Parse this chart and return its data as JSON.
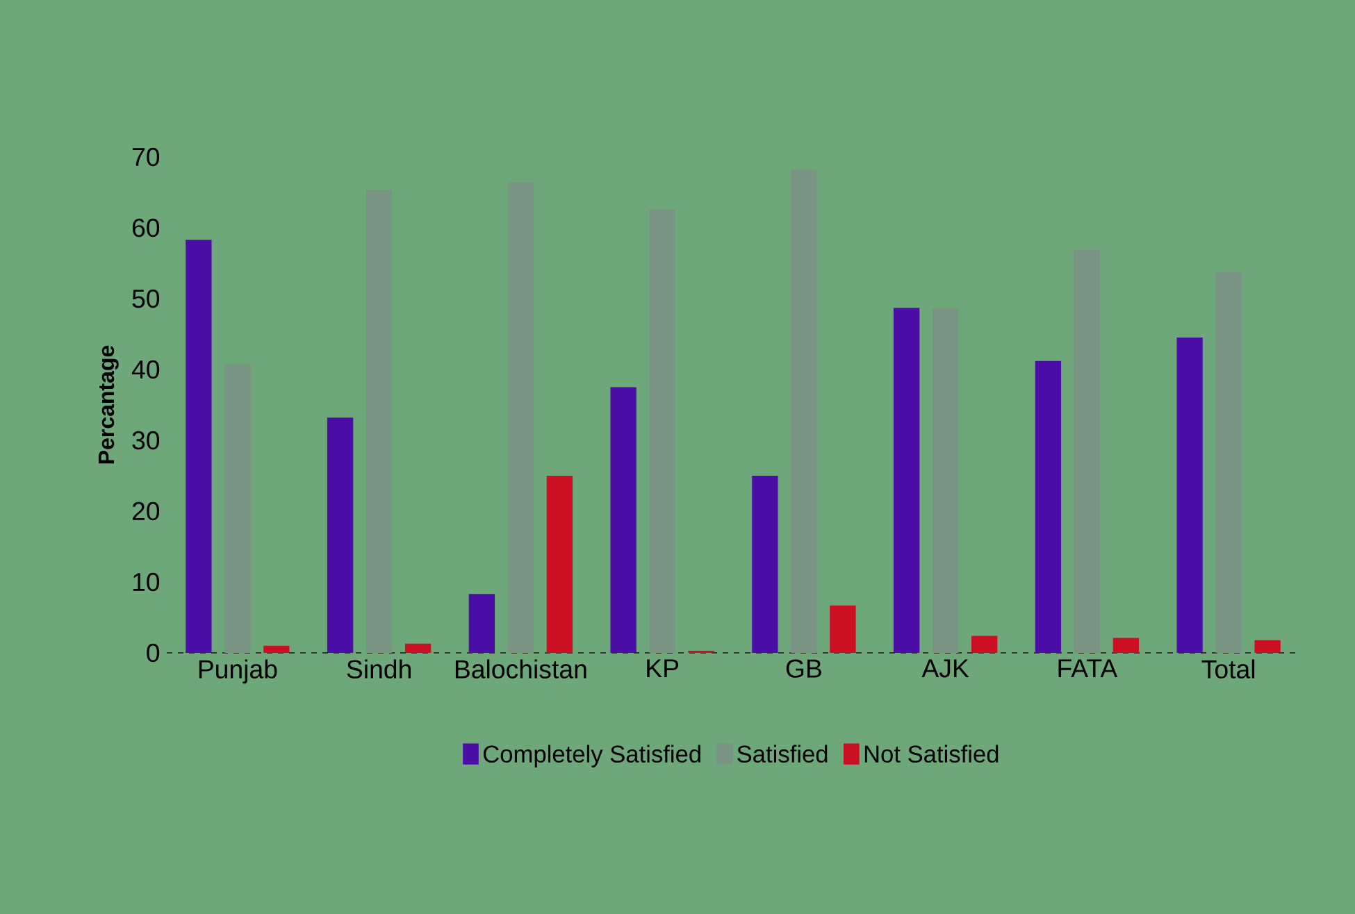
{
  "chart_data": {
    "type": "bar",
    "ylabel": "Percantage",
    "categories": [
      "Punjab",
      "Sindh",
      "Balochistan",
      "KP",
      "GB",
      "AJK",
      "FATA",
      "Total"
    ],
    "series": [
      {
        "name": "Completely Satisfied",
        "color": "#4b0fa8",
        "values": [
          58.3,
          33.2,
          8.3,
          37.5,
          25.0,
          48.7,
          41.2,
          44.5
        ]
      },
      {
        "name": "Satisfied",
        "color": "#7a9484",
        "values": [
          40.7,
          65.4,
          66.4,
          62.6,
          68.2,
          48.7,
          56.9,
          53.8
        ]
      },
      {
        "name": "Not Satisfied",
        "color": "#cc1024",
        "values": [
          1.0,
          1.3,
          25.0,
          0.3,
          6.7,
          2.4,
          2.1,
          1.8
        ]
      }
    ],
    "ylim": [
      0,
      70
    ],
    "yticks": [
      0,
      10,
      20,
      30,
      40,
      50,
      60,
      70
    ],
    "legend": "bottom"
  }
}
